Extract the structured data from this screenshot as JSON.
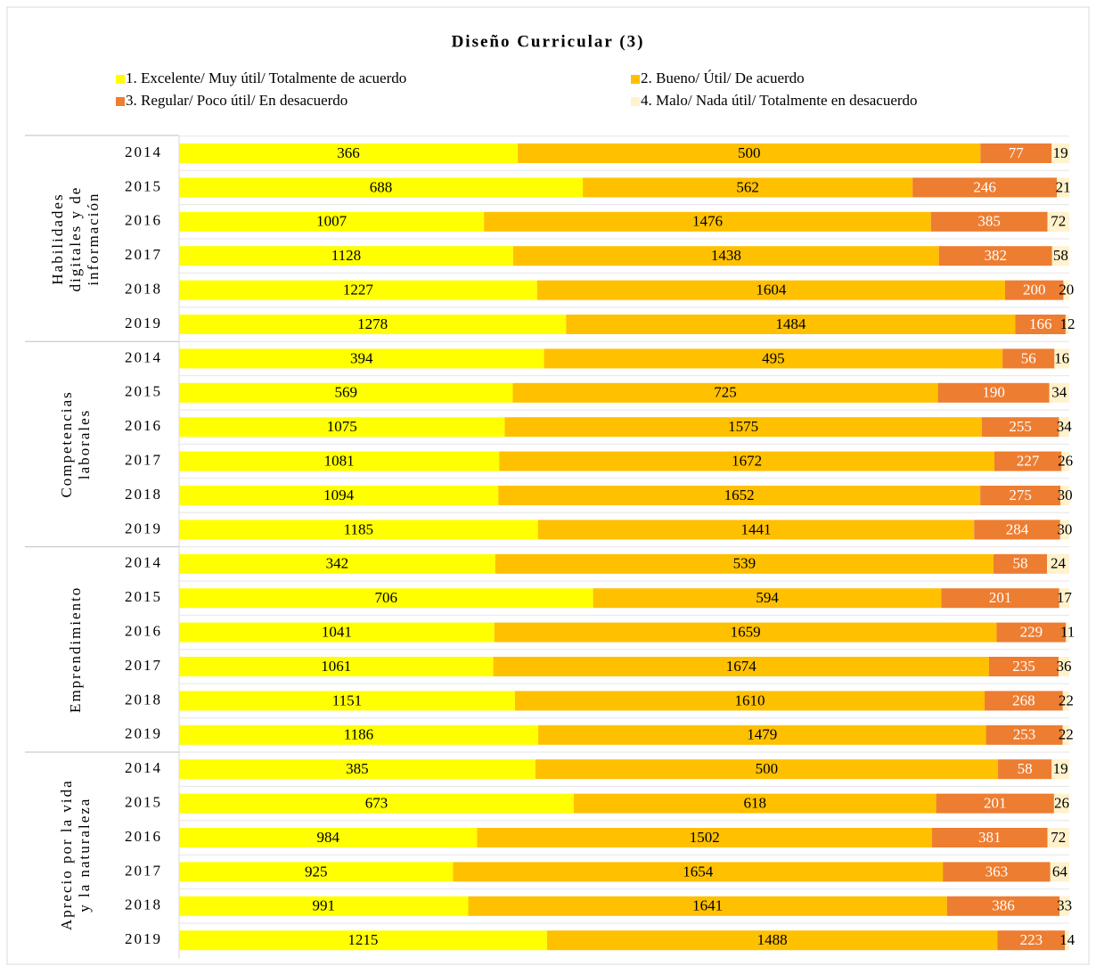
{
  "chart_data": {
    "type": "bar",
    "stacked": "percent",
    "orientation": "horizontal",
    "title": "Diseño Curricular (3)",
    "series": [
      {
        "name": "1. Excelente/ Muy útil/ Totalmente de acuerdo",
        "color": "#ffff00",
        "label_color": "#000000"
      },
      {
        "name": "2. Bueno/ Útil/ De acuerdo",
        "color": "#ffc000",
        "label_color": "#000000"
      },
      {
        "name": "3. Regular/ Poco útil/ En desacuerdo",
        "color": "#ed7d31",
        "label_color": "#ffffff"
      },
      {
        "name": "4. Malo/ Nada útil/ Totalmente en desacuerdo",
        "color": "#fff2cc",
        "label_color": "#000000"
      }
    ],
    "groups": [
      {
        "name": [
          "Habilidades",
          "digitales y de",
          "información"
        ],
        "categories": [
          "2014",
          "2015",
          "2016",
          "2017",
          "2018",
          "2019"
        ],
        "values": [
          [
            366,
            688,
            1007,
            1128,
            1227,
            1278
          ],
          [
            500,
            562,
            1476,
            1438,
            1604,
            1484
          ],
          [
            77,
            246,
            385,
            382,
            200,
            166
          ],
          [
            19,
            21,
            72,
            58,
            20,
            12
          ]
        ]
      },
      {
        "name": [
          "Competencias",
          "laborales"
        ],
        "categories": [
          "2014",
          "2015",
          "2016",
          "2017",
          "2018",
          "2019"
        ],
        "values": [
          [
            394,
            569,
            1075,
            1081,
            1094,
            1185
          ],
          [
            495,
            725,
            1575,
            1672,
            1652,
            1441
          ],
          [
            56,
            190,
            255,
            227,
            275,
            284
          ],
          [
            16,
            34,
            34,
            26,
            30,
            30
          ]
        ]
      },
      {
        "name": [
          "Emprendimiento"
        ],
        "categories": [
          "2014",
          "2015",
          "2016",
          "2017",
          "2018",
          "2019"
        ],
        "values": [
          [
            342,
            706,
            1041,
            1061,
            1151,
            1186
          ],
          [
            539,
            594,
            1659,
            1674,
            1610,
            1479
          ],
          [
            58,
            201,
            229,
            235,
            268,
            253
          ],
          [
            24,
            17,
            11,
            36,
            22,
            22
          ]
        ]
      },
      {
        "name": [
          "Aprecio por la vida",
          "y la naturaleza"
        ],
        "categories": [
          "2014",
          "2015",
          "2016",
          "2017",
          "2018",
          "2019"
        ],
        "values": [
          [
            385,
            673,
            984,
            925,
            991,
            1215
          ],
          [
            500,
            618,
            1502,
            1654,
            1641,
            1488
          ],
          [
            58,
            201,
            381,
            363,
            386,
            223
          ],
          [
            19,
            26,
            72,
            64,
            33,
            14
          ]
        ]
      }
    ]
  }
}
